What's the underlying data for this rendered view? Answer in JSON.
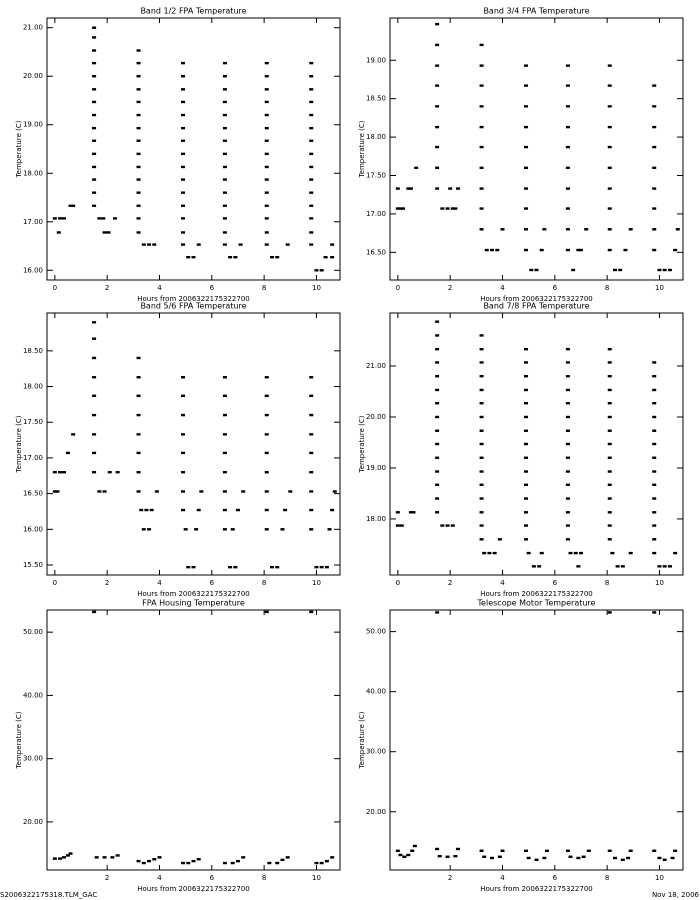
{
  "chart_data": [
    {
      "type": "scatter",
      "title": "Band 1/2 FPA Temperature",
      "x_label": "Hours from 2006322175322700",
      "y_label": "Temperature (C)",
      "color": "#000000",
      "xlim": [
        -0.3,
        10.9
      ],
      "xticks": [
        0,
        2,
        4,
        6,
        8,
        10
      ],
      "ylim": [
        15.8,
        21.2
      ],
      "yticks": [
        {
          "value": 16,
          "label": "16.00"
        },
        {
          "value": 17,
          "label": "17.00"
        },
        {
          "value": 18,
          "label": "18.00"
        },
        {
          "value": 19,
          "label": "19.00"
        },
        {
          "value": 20,
          "label": "20.00"
        },
        {
          "value": 21,
          "label": "21.00"
        }
      ],
      "x": [
        0,
        0.2,
        0.35,
        0.15,
        0.6,
        0.7,
        1.5,
        1.5,
        1.5,
        1.5,
        1.5,
        1.5,
        1.5,
        1.5,
        1.5,
        1.5,
        1.5,
        1.5,
        1.5,
        1.5,
        1.5,
        1.7,
        1.85,
        1.9,
        2.05,
        2.3,
        3.2,
        3.2,
        3.2,
        3.2,
        3.2,
        3.2,
        3.2,
        3.2,
        3.2,
        3.2,
        3.2,
        3.2,
        3.2,
        3.2,
        3.2,
        3.4,
        3.6,
        3.8,
        4.9,
        4.9,
        4.9,
        4.9,
        4.9,
        4.9,
        4.9,
        4.9,
        4.9,
        4.9,
        4.9,
        4.9,
        4.9,
        4.9,
        4.9,
        5.1,
        5.3,
        5.5,
        6.5,
        6.5,
        6.5,
        6.5,
        6.5,
        6.5,
        6.5,
        6.5,
        6.5,
        6.5,
        6.5,
        6.5,
        6.5,
        6.5,
        6.5,
        6.7,
        6.9,
        7.1,
        8.1,
        8.1,
        8.1,
        8.1,
        8.1,
        8.1,
        8.1,
        8.1,
        8.1,
        8.1,
        8.1,
        8.1,
        8.1,
        8.1,
        8.1,
        8.3,
        8.5,
        8.9,
        9.8,
        9.8,
        9.8,
        9.8,
        9.8,
        9.8,
        9.8,
        9.8,
        9.8,
        9.8,
        9.8,
        9.8,
        9.8,
        9.8,
        9.8,
        10.0,
        10.2,
        10.35,
        10.6,
        10.6
      ],
      "values": [
        17.07,
        17.07,
        17.07,
        16.78,
        17.33,
        17.33,
        17.33,
        17.6,
        17.87,
        18.13,
        18.4,
        18.67,
        18.93,
        19.2,
        19.47,
        19.73,
        20.0,
        20.27,
        20.53,
        20.8,
        21.0,
        17.07,
        17.07,
        16.78,
        16.78,
        17.07,
        16.78,
        17.07,
        17.33,
        17.6,
        17.87,
        18.13,
        18.4,
        18.67,
        18.93,
        19.2,
        19.47,
        19.73,
        20.0,
        20.27,
        20.53,
        16.53,
        16.53,
        16.53,
        16.78,
        17.07,
        17.33,
        17.6,
        17.87,
        18.13,
        18.4,
        18.67,
        18.93,
        19.2,
        19.47,
        19.73,
        20.0,
        20.27,
        16.53,
        16.27,
        16.27,
        16.53,
        16.78,
        17.07,
        17.33,
        17.6,
        17.87,
        18.13,
        18.4,
        18.67,
        18.93,
        19.2,
        19.47,
        19.73,
        20.0,
        20.27,
        16.53,
        16.27,
        16.27,
        16.53,
        16.78,
        17.07,
        17.33,
        17.6,
        17.87,
        18.13,
        18.4,
        18.67,
        18.93,
        19.2,
        19.47,
        19.73,
        20.0,
        20.27,
        16.53,
        16.27,
        16.27,
        16.53,
        16.78,
        17.07,
        17.33,
        17.6,
        17.87,
        18.13,
        18.4,
        18.67,
        18.93,
        19.2,
        19.47,
        19.73,
        20.0,
        20.27,
        16.53,
        16.0,
        16.0,
        16.27,
        16.53,
        16.27
      ]
    },
    {
      "type": "scatter",
      "title": "Band 3/4 FPA Temperature",
      "x_label": "Hours from 2006322175322700",
      "y_label": "Temperature (C)",
      "color": "#000000",
      "xlim": [
        -0.3,
        10.9
      ],
      "xticks": [
        0,
        2,
        4,
        6,
        8,
        10
      ],
      "ylim": [
        16.14,
        19.55
      ],
      "yticks": [
        {
          "value": 16.5,
          "label": "16.50"
        },
        {
          "value": 17,
          "label": "17.00"
        },
        {
          "value": 17.5,
          "label": "17.50"
        },
        {
          "value": 18,
          "label": "18.00"
        },
        {
          "value": 18.5,
          "label": "18.50"
        },
        {
          "value": 19,
          "label": "19.00"
        }
      ],
      "x": [
        0,
        0.1,
        0.2,
        0,
        0.4,
        0.5,
        0.7,
        1.5,
        1.5,
        1.5,
        1.5,
        1.5,
        1.5,
        1.5,
        1.5,
        1.5,
        1.7,
        1.9,
        2.1,
        2.0,
        2.3,
        2.2,
        3.2,
        3.2,
        3.2,
        3.2,
        3.2,
        3.2,
        3.2,
        3.2,
        3.2,
        3.2,
        3.4,
        3.6,
        3.8,
        4.0,
        4.9,
        4.9,
        4.9,
        4.9,
        4.9,
        4.9,
        4.9,
        4.9,
        4.9,
        4.9,
        5.1,
        5.3,
        5.5,
        5.6,
        6.5,
        6.5,
        6.5,
        6.5,
        6.5,
        6.5,
        6.5,
        6.5,
        6.5,
        6.5,
        6.7,
        6.9,
        7.0,
        7.2,
        8.1,
        8.1,
        8.1,
        8.1,
        8.1,
        8.1,
        8.1,
        8.1,
        8.1,
        8.1,
        8.3,
        8.5,
        8.7,
        8.9,
        9.8,
        9.8,
        9.8,
        9.8,
        9.8,
        9.8,
        9.8,
        9.8,
        9.8,
        10.0,
        10.2,
        10.4,
        10.6,
        10.7
      ],
      "values": [
        17.07,
        17.07,
        17.07,
        17.33,
        17.33,
        17.33,
        17.6,
        17.33,
        17.6,
        17.87,
        18.13,
        18.4,
        18.67,
        18.93,
        19.2,
        19.47,
        17.07,
        17.07,
        17.07,
        17.33,
        17.33,
        17.07,
        16.8,
        17.07,
        17.33,
        17.6,
        17.87,
        18.13,
        18.4,
        18.67,
        18.93,
        19.2,
        16.53,
        16.53,
        16.53,
        16.8,
        16.8,
        17.07,
        17.33,
        17.6,
        17.87,
        18.13,
        18.4,
        18.67,
        18.93,
        16.53,
        16.27,
        16.27,
        16.53,
        16.8,
        16.8,
        17.07,
        17.33,
        17.6,
        17.87,
        18.13,
        18.4,
        18.67,
        18.93,
        16.53,
        16.27,
        16.53,
        16.53,
        16.8,
        16.8,
        17.07,
        17.33,
        17.6,
        17.87,
        18.13,
        18.4,
        18.67,
        18.93,
        16.53,
        16.27,
        16.27,
        16.53,
        16.8,
        16.8,
        17.07,
        17.33,
        17.6,
        17.87,
        18.13,
        18.4,
        18.67,
        16.53,
        16.27,
        16.27,
        16.27,
        16.53,
        16.8
      ]
    },
    {
      "type": "scatter",
      "title": "Band 5/6 FPA Temperature",
      "x_label": "Hours from 2006322175322700",
      "y_label": "Temperature (C)",
      "color": "#000000",
      "xlim": [
        -0.3,
        10.9
      ],
      "xticks": [
        0,
        2,
        4,
        6,
        8,
        10
      ],
      "ylim": [
        15.36,
        19.03
      ],
      "yticks": [
        {
          "value": 15.5,
          "label": "15.50"
        },
        {
          "value": 16,
          "label": "16.00"
        },
        {
          "value": 16.5,
          "label": "16.50"
        },
        {
          "value": 17,
          "label": "17.00"
        },
        {
          "value": 17.5,
          "label": "17.50"
        },
        {
          "value": 18,
          "label": "18.00"
        },
        {
          "value": 18.5,
          "label": "18.50"
        }
      ],
      "x": [
        0,
        0.1,
        0,
        0.2,
        0.35,
        0.5,
        0.7,
        1.5,
        1.5,
        1.5,
        1.5,
        1.5,
        1.5,
        1.5,
        1.5,
        1.5,
        1.7,
        1.9,
        2.1,
        2.4,
        3.2,
        3.2,
        3.2,
        3.2,
        3.2,
        3.2,
        3.2,
        3.2,
        3.3,
        3.5,
        3.7,
        3.4,
        3.6,
        3.9,
        4.9,
        4.9,
        4.9,
        4.9,
        4.9,
        4.9,
        4.9,
        4.9,
        5.0,
        5.1,
        5.3,
        5.4,
        5.5,
        5.6,
        6.5,
        6.5,
        6.5,
        6.5,
        6.5,
        6.5,
        6.5,
        6.5,
        6.5,
        6.7,
        6.9,
        6.8,
        7.0,
        7.2,
        8.1,
        8.1,
        8.1,
        8.1,
        8.1,
        8.1,
        8.1,
        8.1,
        8.1,
        8.3,
        8.5,
        8.7,
        8.8,
        9.0,
        9.8,
        9.8,
        9.8,
        9.8,
        9.8,
        9.8,
        9.8,
        9.8,
        9.8,
        10.0,
        10.2,
        10.4,
        10.5,
        10.6,
        10.7
      ],
      "values": [
        16.53,
        16.53,
        16.8,
        16.8,
        16.8,
        17.07,
        17.33,
        16.8,
        17.07,
        17.33,
        17.6,
        17.87,
        18.13,
        18.4,
        18.67,
        18.9,
        16.53,
        16.53,
        16.8,
        16.8,
        16.53,
        16.8,
        17.07,
        17.33,
        17.6,
        17.87,
        18.13,
        18.4,
        16.27,
        16.27,
        16.27,
        16.0,
        16.0,
        16.53,
        16.27,
        16.53,
        16.8,
        17.07,
        17.33,
        17.6,
        17.87,
        18.13,
        16.0,
        15.47,
        15.47,
        16.0,
        16.27,
        16.53,
        16.27,
        16.53,
        16.8,
        17.07,
        17.33,
        17.6,
        17.87,
        18.13,
        16.0,
        15.47,
        15.47,
        16.0,
        16.27,
        16.53,
        16.27,
        16.53,
        16.8,
        17.07,
        17.33,
        17.6,
        17.87,
        18.13,
        16.0,
        15.47,
        15.47,
        16.0,
        16.27,
        16.53,
        16.27,
        16.53,
        16.8,
        17.07,
        17.33,
        17.6,
        17.87,
        18.13,
        16.0,
        15.47,
        15.47,
        15.47,
        16.0,
        16.27,
        16.53
      ]
    },
    {
      "type": "scatter",
      "title": "Band 7/8 FPA Temperature",
      "x_label": "Hours from 2006322175322700",
      "y_label": "Temperature (C)",
      "color": "#000000",
      "xlim": [
        -0.3,
        10.9
      ],
      "xticks": [
        0,
        2,
        4,
        6,
        8,
        10
      ],
      "ylim": [
        16.9,
        22.04
      ],
      "yticks": [
        {
          "value": 18,
          "label": "18.00"
        },
        {
          "value": 19,
          "label": "19.00"
        },
        {
          "value": 20,
          "label": "20.00"
        },
        {
          "value": 21,
          "label": "21.00"
        }
      ],
      "x": [
        0,
        0.15,
        0,
        0.5,
        0.6,
        1.5,
        1.5,
        1.5,
        1.5,
        1.5,
        1.5,
        1.5,
        1.5,
        1.5,
        1.5,
        1.5,
        1.5,
        1.5,
        1.5,
        1.5,
        1.7,
        1.9,
        2.1,
        3.2,
        3.2,
        3.2,
        3.2,
        3.2,
        3.2,
        3.2,
        3.2,
        3.2,
        3.2,
        3.2,
        3.2,
        3.2,
        3.2,
        3.2,
        3.2,
        3.3,
        3.5,
        3.7,
        3.9,
        4.9,
        4.9,
        4.9,
        4.9,
        4.9,
        4.9,
        4.9,
        4.9,
        4.9,
        4.9,
        4.9,
        4.9,
        4.9,
        4.9,
        4.9,
        5.0,
        5.2,
        5.4,
        5.5,
        6.5,
        6.5,
        6.5,
        6.5,
        6.5,
        6.5,
        6.5,
        6.5,
        6.5,
        6.5,
        6.5,
        6.5,
        6.5,
        6.5,
        6.5,
        6.6,
        6.8,
        7.0,
        6.9,
        8.1,
        8.1,
        8.1,
        8.1,
        8.1,
        8.1,
        8.1,
        8.1,
        8.1,
        8.1,
        8.1,
        8.1,
        8.1,
        8.1,
        8.1,
        8.2,
        8.4,
        8.6,
        8.9,
        9.8,
        9.8,
        9.8,
        9.8,
        9.8,
        9.8,
        9.8,
        9.8,
        9.8,
        9.8,
        9.8,
        9.8,
        9.8,
        9.8,
        9.8,
        10.0,
        10.2,
        10.4,
        10.6
      ],
      "values": [
        17.87,
        17.87,
        18.13,
        18.13,
        18.13,
        18.13,
        18.4,
        18.67,
        18.93,
        19.2,
        19.47,
        19.73,
        20.0,
        20.27,
        20.53,
        20.8,
        21.07,
        21.33,
        21.6,
        21.87,
        17.87,
        17.87,
        17.87,
        17.6,
        17.87,
        18.13,
        18.4,
        18.67,
        18.93,
        19.2,
        19.47,
        19.73,
        20.0,
        20.27,
        20.53,
        20.8,
        21.07,
        21.33,
        21.6,
        17.33,
        17.33,
        17.33,
        17.6,
        17.6,
        17.87,
        18.13,
        18.4,
        18.67,
        18.93,
        19.2,
        19.47,
        19.73,
        20.0,
        20.27,
        20.53,
        20.8,
        21.07,
        21.33,
        17.33,
        17.07,
        17.07,
        17.33,
        17.6,
        17.87,
        18.13,
        18.4,
        18.67,
        18.93,
        19.2,
        19.47,
        19.73,
        20.0,
        20.27,
        20.53,
        20.8,
        21.07,
        21.33,
        17.33,
        17.33,
        17.33,
        17.07,
        17.6,
        17.87,
        18.13,
        18.4,
        18.67,
        18.93,
        19.2,
        19.47,
        19.73,
        20.0,
        20.27,
        20.53,
        20.8,
        21.07,
        21.33,
        17.33,
        17.07,
        17.07,
        17.33,
        17.6,
        17.87,
        18.13,
        18.4,
        18.67,
        18.93,
        19.2,
        19.47,
        19.73,
        20.0,
        20.27,
        20.53,
        20.8,
        21.07,
        17.33,
        17.07,
        17.07,
        17.07,
        17.33
      ]
    },
    {
      "type": "scatter",
      "title": "FPA Housing Temperature",
      "x_label": "Hours from 2006322175322700",
      "y_label": "Temperature (C)",
      "color": "#000000",
      "xlim": [
        -0.3,
        10.9
      ],
      "xticks": [
        2,
        4,
        6,
        8,
        10
      ],
      "ylim": [
        12.4,
        53.5
      ],
      "yticks": [
        {
          "value": 20,
          "label": "20.00"
        },
        {
          "value": 30,
          "label": "30.00"
        },
        {
          "value": 40,
          "label": "40.00"
        },
        {
          "value": 50,
          "label": "50.00"
        }
      ],
      "x": [
        0,
        0.2,
        0.35,
        0.5,
        0.6,
        1.5,
        1.6,
        1.9,
        2.2,
        2.4,
        3.2,
        3.4,
        3.6,
        3.8,
        4.0,
        4.9,
        5.1,
        5.3,
        5.5,
        6.5,
        6.8,
        7.0,
        7.2,
        8.1,
        8.2,
        8.5,
        8.7,
        8.9,
        9.8,
        10.0,
        10.2,
        10.4,
        10.6
      ],
      "values": [
        14.2,
        14.2,
        14.4,
        14.7,
        15.0,
        53.2,
        14.4,
        14.4,
        14.4,
        14.7,
        13.8,
        13.5,
        13.8,
        14.1,
        14.4,
        13.5,
        13.5,
        13.8,
        14.1,
        13.5,
        13.5,
        13.8,
        14.4,
        53.2,
        13.5,
        13.5,
        14.0,
        14.4,
        53.2,
        13.5,
        13.5,
        13.8,
        14.4
      ]
    },
    {
      "type": "scatter",
      "title": "Telescope Motor Temperature",
      "x_label": "Hours from 2006322175322700",
      "y_label": "Temperature (C)",
      "color": "#000000",
      "xlim": [
        -0.3,
        10.9
      ],
      "xticks": [
        2,
        4,
        6,
        8,
        10
      ],
      "ylim": [
        10.3,
        53.6
      ],
      "yticks": [
        {
          "value": 20,
          "label": "20.00"
        },
        {
          "value": 30,
          "label": "30.00"
        },
        {
          "value": 40,
          "label": "40.00"
        },
        {
          "value": 50,
          "label": "50.00"
        }
      ],
      "x": [
        0,
        0.1,
        0.25,
        0.4,
        0.55,
        0.65,
        1.5,
        1.5,
        1.6,
        1.9,
        2.2,
        2.3,
        3.2,
        3.3,
        3.6,
        3.9,
        4.0,
        4.9,
        5.0,
        5.3,
        5.6,
        5.7,
        6.5,
        6.6,
        6.9,
        7.1,
        7.3,
        8.1,
        8.1,
        8.3,
        8.6,
        8.8,
        8.9,
        9.8,
        9.8,
        10.0,
        10.2,
        10.5,
        10.6
      ],
      "values": [
        13.5,
        12.8,
        12.5,
        12.8,
        13.5,
        14.3,
        53.2,
        13.8,
        12.6,
        12.5,
        12.6,
        13.8,
        13.5,
        12.5,
        12.3,
        12.5,
        13.5,
        13.5,
        12.3,
        12.0,
        12.3,
        13.5,
        13.5,
        12.5,
        12.3,
        12.5,
        13.5,
        53.2,
        13.5,
        12.3,
        12.0,
        12.3,
        13.5,
        53.2,
        13.5,
        12.3,
        12.0,
        12.3,
        13.5
      ]
    }
  ],
  "footer": {
    "left": "S2006322175318.TLM_GAC",
    "right": "Nov 18, 2006"
  }
}
